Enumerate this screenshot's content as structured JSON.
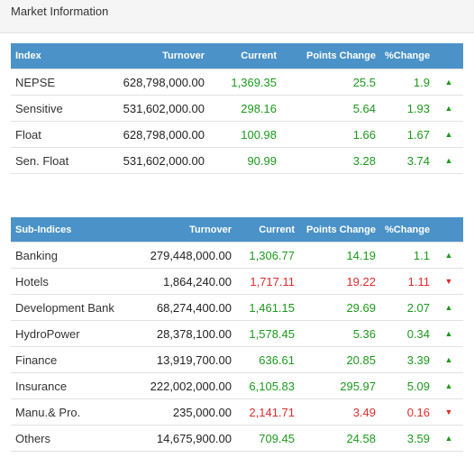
{
  "header": {
    "title": "Market Information"
  },
  "index_table": {
    "columns": [
      "Index",
      "Turnover",
      "Current",
      "Points Change",
      "%Change",
      ""
    ],
    "rows": [
      {
        "name": "NEPSE",
        "turnover": "628,798,000.00",
        "current": "1,369.35",
        "points": "25.5",
        "pct": "1.9",
        "trend": "up"
      },
      {
        "name": "Sensitive",
        "turnover": "531,602,000.00",
        "current": "298.16",
        "points": "5.64",
        "pct": "1.93",
        "trend": "up"
      },
      {
        "name": "Float",
        "turnover": "628,798,000.00",
        "current": "100.98",
        "points": "1.66",
        "pct": "1.67",
        "trend": "up"
      },
      {
        "name": "Sen. Float",
        "turnover": "531,602,000.00",
        "current": "90.99",
        "points": "3.28",
        "pct": "3.74",
        "trend": "up"
      }
    ]
  },
  "sub_table": {
    "columns": [
      "Sub-Indices",
      "Turnover",
      "Current",
      "Points Change",
      "%Change",
      ""
    ],
    "rows": [
      {
        "name": "Banking",
        "turnover": "279,448,000.00",
        "current": "1,306.77",
        "points": "14.19",
        "pct": "1.1",
        "trend": "up"
      },
      {
        "name": "Hotels",
        "turnover": "1,864,240.00",
        "current": "1,717.11",
        "points": "19.22",
        "pct": "1.11",
        "trend": "down"
      },
      {
        "name": "Development Bank",
        "turnover": "68,274,400.00",
        "current": "1,461.15",
        "points": "29.69",
        "pct": "2.07",
        "trend": "up"
      },
      {
        "name": "HydroPower",
        "turnover": "28,378,100.00",
        "current": "1,578.45",
        "points": "5.36",
        "pct": "0.34",
        "trend": "up"
      },
      {
        "name": "Finance",
        "turnover": "13,919,700.00",
        "current": "636.61",
        "points": "20.85",
        "pct": "3.39",
        "trend": "up"
      },
      {
        "name": "Insurance",
        "turnover": "222,002,000.00",
        "current": "6,105.83",
        "points": "295.97",
        "pct": "5.09",
        "trend": "up"
      },
      {
        "name": "Manu.& Pro.",
        "turnover": "235,000.00",
        "current": "2,141.71",
        "points": "3.49",
        "pct": "0.16",
        "trend": "down"
      },
      {
        "name": "Others",
        "turnover": "14,675,900.00",
        "current": "709.45",
        "points": "24.58",
        "pct": "3.59",
        "trend": "up"
      }
    ]
  },
  "colors": {
    "header_bg": "#4a92c7",
    "up": "#1c9a1c",
    "down": "#e02b2b"
  },
  "icons": {
    "up": "triangle-up-icon",
    "down": "triangle-down-icon"
  }
}
